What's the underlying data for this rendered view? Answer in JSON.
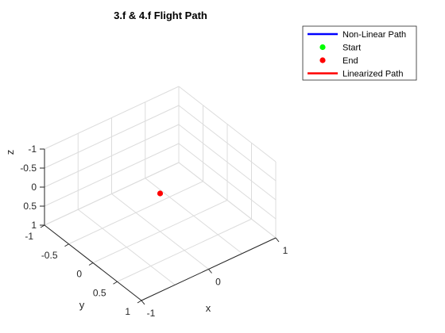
{
  "chart_data": {
    "type": "scatter",
    "title": "3.f & 4.f Flight Path",
    "xlabel": "x",
    "ylabel": "y",
    "zlabel": "z",
    "xlim": [
      -1,
      1
    ],
    "ylim": [
      -1,
      1
    ],
    "zlim": [
      -1,
      1
    ],
    "z_direction": "reversed",
    "x_ticks": [
      "-1",
      "0",
      "1"
    ],
    "y_ticks": [
      "-1",
      "-0.5",
      "0",
      "0.5",
      "1"
    ],
    "z_ticks": [
      "-1",
      "-0.5",
      "0",
      "0.5",
      "1"
    ],
    "grid": true,
    "legend_position": "top-right",
    "series": [
      {
        "name": "Non-Linear Path",
        "kind": "line",
        "color": "#0000ff",
        "points": []
      },
      {
        "name": "Start",
        "kind": "marker",
        "color": "#00ff00",
        "points": []
      },
      {
        "name": "End",
        "kind": "marker",
        "color": "#ff0000",
        "points": [
          {
            "x": 0,
            "y": 0,
            "z": 0
          }
        ]
      },
      {
        "name": "Linearized Path",
        "kind": "line",
        "color": "#ff0000",
        "points": []
      }
    ]
  }
}
